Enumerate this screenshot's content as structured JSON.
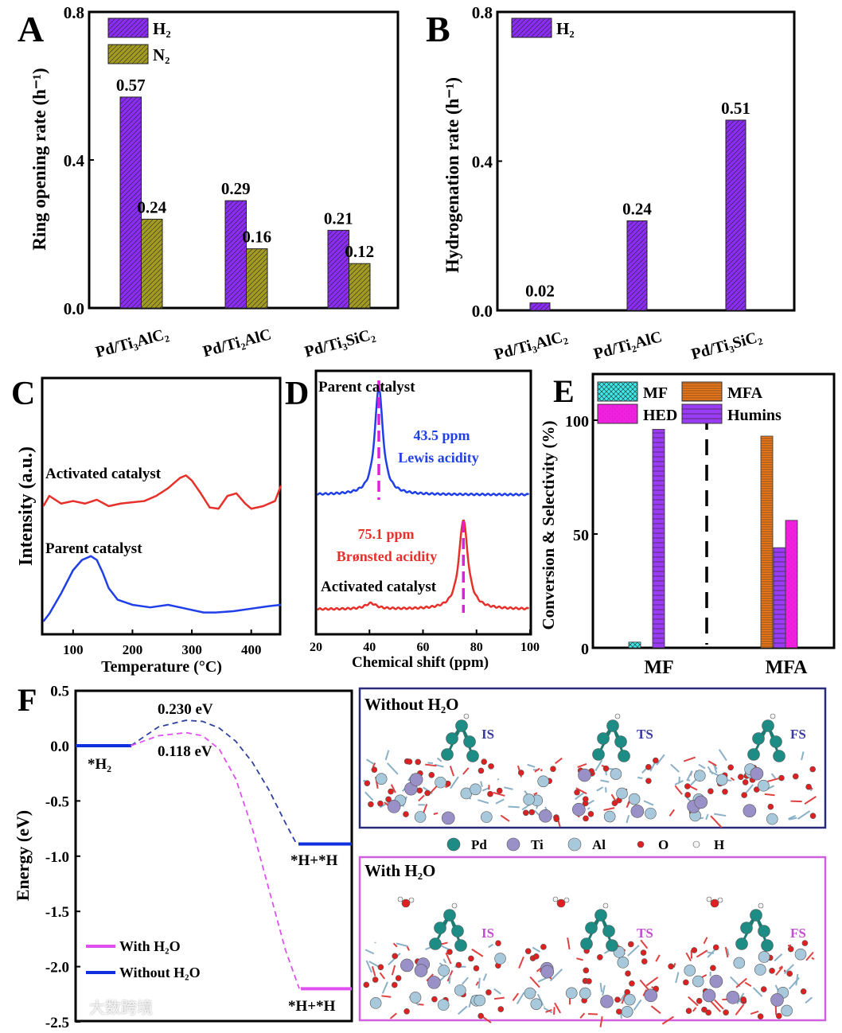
{
  "watermark": "大数跨境",
  "chart_data": [
    {
      "panel": "A",
      "type": "bar",
      "title": "",
      "ylabel": "Ring opening rate (h⁻¹)",
      "xlabel": "",
      "ylim": [
        0,
        0.8
      ],
      "yticks": [
        "0.0",
        "0.4",
        "0.8"
      ],
      "categories": [
        "Pd/Ti₃AlC₂",
        "Pd/Ti₂AlC",
        "Pd/Ti₃SiC₂"
      ],
      "series": [
        {
          "name": "H₂",
          "color": "#8b2cf5",
          "values": [
            0.57,
            0.29,
            0.21
          ],
          "labels": [
            "0.57",
            "0.29",
            "0.21"
          ]
        },
        {
          "name": "N₂",
          "color": "#a39a22",
          "values": [
            0.24,
            0.16,
            0.12
          ],
          "labels": [
            "0.24",
            "0.16",
            "0.12"
          ]
        }
      ],
      "legend": "top-left"
    },
    {
      "panel": "B",
      "type": "bar",
      "ylabel": "Hydrogenation rate (h⁻¹)",
      "ylim": [
        0,
        0.8
      ],
      "yticks": [
        "0.0",
        "0.4",
        "0.8"
      ],
      "categories": [
        "Pd/Ti₃AlC₂",
        "Pd/Ti₂AlC",
        "Pd/Ti₃SiC₂"
      ],
      "series": [
        {
          "name": "H₂",
          "color": "#8b2cf5",
          "values": [
            0.02,
            0.24,
            0.51
          ],
          "labels": [
            "0.02",
            "0.24",
            "0.51"
          ]
        }
      ],
      "legend": "top-left"
    },
    {
      "panel": "C",
      "type": "line",
      "xlabel": "Temperature (°C)",
      "ylabel": "Intensity (a.u.)",
      "xlim": [
        50,
        450
      ],
      "xticks": [
        "100",
        "200",
        "300",
        "400"
      ],
      "series": [
        {
          "name": "Activated catalyst",
          "color": "#e8302a",
          "x": [
            50,
            60,
            80,
            100,
            120,
            140,
            160,
            180,
            200,
            220,
            240,
            260,
            280,
            290,
            300,
            315,
            330,
            345,
            360,
            375,
            390,
            400,
            420,
            440,
            450
          ],
          "y": [
            5.0,
            5.4,
            5.1,
            5.2,
            5.1,
            5.25,
            5.0,
            5.1,
            5.15,
            5.2,
            5.4,
            5.7,
            6.1,
            6.2,
            6.0,
            5.5,
            4.95,
            4.9,
            5.4,
            5.5,
            5.1,
            4.9,
            5.0,
            5.2,
            5.8
          ]
        },
        {
          "name": "Parent catalyst",
          "color": "#1f3fe8",
          "x": [
            50,
            60,
            80,
            100,
            115,
            130,
            140,
            150,
            160,
            175,
            200,
            230,
            260,
            290,
            320,
            340,
            370,
            400,
            430,
            450
          ],
          "y": [
            0.5,
            0.8,
            1.6,
            2.5,
            2.9,
            3.05,
            2.9,
            2.4,
            1.8,
            1.35,
            1.15,
            1.05,
            1.15,
            1.0,
            0.85,
            0.85,
            0.9,
            1.0,
            1.1,
            1.15
          ]
        }
      ]
    },
    {
      "panel": "D",
      "type": "line",
      "xlabel": "Chemical shift (ppm)",
      "xlim": [
        20,
        100
      ],
      "xticks": [
        "20",
        "40",
        "60",
        "80",
        "100"
      ],
      "series": [
        {
          "name": "Parent catalyst",
          "color": "#1f3fe8",
          "baseline": 5.3,
          "peaks": [
            {
              "center": 43.5,
              "height": 4.1,
              "width": 1.8
            }
          ],
          "annotation": [
            "43.5 ppm",
            "Lewis acidity"
          ]
        },
        {
          "name": "Activated catalyst",
          "color": "#e8302a",
          "baseline": 0.95,
          "peaks": [
            {
              "center": 40.5,
              "height": 0.22,
              "width": 2.5
            },
            {
              "center": 75.1,
              "height": 3.4,
              "width": 2.0
            }
          ],
          "annotation": [
            "75.1 ppm",
            "Brønsted acidity"
          ]
        }
      ],
      "markers": [
        43.5,
        75.1
      ],
      "marker_color": "#e020d8"
    },
    {
      "panel": "E",
      "type": "bar",
      "ylabel": "Conversion & Selectivity (%)",
      "ylim": [
        0,
        100
      ],
      "yticks": [
        "0",
        "50",
        "100"
      ],
      "categories": [
        "MF",
        "MFA"
      ],
      "legend": [
        {
          "name": "MF",
          "color": "#3de8e8"
        },
        {
          "name": "MFA",
          "color": "#f07a1a"
        },
        {
          "name": "HED",
          "color": "#f020e0"
        },
        {
          "name": "Humins",
          "color": "#9b3cf5"
        }
      ],
      "bars": [
        {
          "category": "MF",
          "series": "MF",
          "value": 2.5
        },
        {
          "category": "MF",
          "series": "Humins",
          "value": 96
        },
        {
          "category": "MFA",
          "series": "MFA",
          "value": 93
        },
        {
          "category": "MFA",
          "series": "Humins",
          "value": 44
        },
        {
          "category": "MFA",
          "series": "HED",
          "value": 56
        }
      ]
    },
    {
      "panel": "F",
      "type": "line",
      "ylabel": "Energy (eV)",
      "ylim": [
        -2.5,
        0.5
      ],
      "yticks": [
        "0.5",
        "0.0",
        "-0.5",
        "-1.0",
        "-1.5",
        "-2.0",
        "-2.5"
      ],
      "states": [
        "*H₂",
        "*H+*H",
        "*H+*H"
      ],
      "barrier_labels": [
        "0.230 eV",
        "0.118 eV"
      ],
      "series": [
        {
          "name": "With H₂O",
          "color": "#e050f0",
          "initial": 0,
          "barrier": 0.118,
          "final": -2.2,
          "x": [
            1,
            1.5,
            2.0,
            2.3,
            2.6,
            2.9,
            3.2,
            3.5,
            3.8,
            4.05
          ],
          "y": [
            0,
            0.09,
            0.118,
            0.09,
            -0.03,
            -0.3,
            -0.75,
            -1.3,
            -1.85,
            -2.2
          ]
        },
        {
          "name": "Without H₂O",
          "color": "#1030e0",
          "initial": 0,
          "barrier": 0.23,
          "final": -0.89,
          "x": [
            1,
            1.5,
            2.0,
            2.3,
            2.6,
            2.9,
            3.2,
            3.5,
            3.8,
            4.0
          ],
          "y": [
            0,
            0.17,
            0.23,
            0.22,
            0.16,
            0.04,
            -0.15,
            -0.4,
            -0.7,
            -0.89
          ]
        }
      ]
    }
  ],
  "structures": {
    "top_title": "Without H₂O",
    "bottom_title": "With H₂O",
    "states": [
      "IS",
      "TS",
      "FS"
    ],
    "legend": [
      {
        "name": "Pd",
        "color": "#1c8c84"
      },
      {
        "name": "Ti",
        "color": "#9a90c8"
      },
      {
        "name": "Al",
        "color": "#a8c8dc"
      },
      {
        "name": "O",
        "color": "#e02020"
      },
      {
        "name": "H",
        "color": "#f4f4f4"
      }
    ]
  }
}
